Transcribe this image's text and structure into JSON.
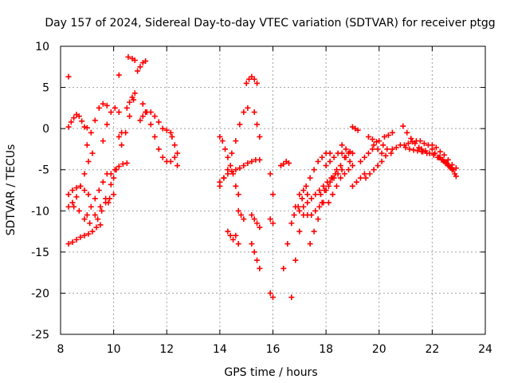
{
  "chart_data": {
    "type": "scatter",
    "title": "Day 157 of 2024, Sidereal Day-to-day VTEC variation (SDTVAR) for receiver ptgg",
    "xlabel": "GPS time / hours",
    "ylabel": "SDTVAR / TECUs",
    "xlim": [
      8,
      24
    ],
    "ylim": [
      -25,
      10
    ],
    "xticks": [
      8,
      10,
      12,
      14,
      16,
      18,
      20,
      22,
      24
    ],
    "yticks": [
      -25,
      -20,
      -15,
      -10,
      -5,
      0,
      5,
      10
    ],
    "grid": true,
    "marker": "+",
    "color": "#ff0000",
    "series": [
      {
        "name": "s1",
        "x": [
          8.3,
          8.4,
          8.5,
          8.6,
          8.7,
          8.8,
          8.9,
          9.0
        ],
        "y": [
          0.2,
          0.8,
          1.3,
          1.7,
          1.5,
          0.9,
          0.2,
          0.1
        ]
      },
      {
        "name": "s2",
        "x": [
          8.3,
          8.45,
          8.6,
          8.75,
          8.9,
          9.05
        ],
        "y": [
          -8.0,
          -7.5,
          -7.2,
          -7.0,
          -7.5,
          -8.0
        ]
      },
      {
        "name": "s3",
        "x": [
          8.3,
          8.45,
          8.6,
          8.75,
          8.9,
          9.05,
          9.2
        ],
        "y": [
          -9.5,
          -9.0,
          -8.3,
          -7.0,
          -5.5,
          -4.0,
          -3.0
        ]
      },
      {
        "name": "s4",
        "x": [
          8.3,
          8.45,
          8.6,
          8.75,
          8.9,
          9.05,
          9.2,
          9.35,
          9.5
        ],
        "y": [
          -14.0,
          -13.8,
          -13.5,
          -13.2,
          -13.0,
          -12.8,
          -12.5,
          -12.0,
          -11.7
        ]
      },
      {
        "name": "s5",
        "x": [
          8.3
        ],
        "y": [
          6.3
        ]
      },
      {
        "name": "s6",
        "x": [
          8.5,
          8.7,
          8.9,
          9.1,
          9.3,
          9.5,
          9.7,
          9.8
        ],
        "y": [
          -9.5,
          -10.0,
          -11.0,
          -11.5,
          -10.5,
          -9.5,
          -8.5,
          -9.0
        ]
      },
      {
        "name": "s7",
        "x": [
          9.0,
          9.15,
          9.3,
          9.45,
          9.6,
          9.75
        ],
        "y": [
          -2.0,
          -0.5,
          1.0,
          2.5,
          3.0,
          2.8
        ]
      },
      {
        "name": "s8",
        "x": [
          9.0,
          9.15,
          9.3,
          9.45,
          9.6,
          9.75
        ],
        "y": [
          -10.5,
          -9.5,
          -8.5,
          -7.5,
          -6.5,
          -5.5
        ]
      },
      {
        "name": "s9",
        "x": [
          9.4,
          9.55,
          9.7,
          9.85,
          10.0
        ],
        "y": [
          -11.0,
          -10.0,
          -9.0,
          -8.5,
          -8.0
        ]
      },
      {
        "name": "s10",
        "x": [
          9.6,
          9.75,
          9.9,
          10.05,
          10.2
        ],
        "y": [
          -1.5,
          0.5,
          2.0,
          2.5,
          2.0
        ]
      },
      {
        "name": "s11",
        "x": [
          9.9,
          10.05,
          10.2,
          10.35,
          10.5
        ],
        "y": [
          -5.5,
          -5.0,
          -4.6,
          -4.3,
          -4.2
        ]
      },
      {
        "name": "s12",
        "x": [
          9.9,
          10.0,
          10.1
        ],
        "y": [
          -6.8,
          -6.0,
          -5.0
        ]
      },
      {
        "name": "s13",
        "x": [
          10.2,
          10.3
        ],
        "y": [
          -1.0,
          -0.5
        ]
      },
      {
        "name": "s14",
        "x": [
          10.2
        ],
        "y": [
          6.5
        ]
      },
      {
        "name": "s15",
        "x": [
          10.3,
          10.45,
          10.6,
          10.75
        ],
        "y": [
          -2.0,
          -0.5,
          1.5,
          3.5
        ]
      },
      {
        "name": "s16",
        "x": [
          10.5,
          10.6,
          10.7,
          10.8
        ],
        "y": [
          2.5,
          3.2,
          3.8,
          4.3
        ]
      },
      {
        "name": "s17",
        "x": [
          10.55,
          10.7,
          10.8
        ],
        "y": [
          8.7,
          8.5,
          8.3
        ]
      },
      {
        "name": "s18",
        "x": [
          10.9,
          11.0,
          11.1,
          11.2
        ],
        "y": [
          7.0,
          7.5,
          8.0,
          8.2
        ]
      },
      {
        "name": "s19",
        "x": [
          11.0,
          11.1,
          11.2
        ],
        "y": [
          1.0,
          1.5,
          2.0
        ]
      },
      {
        "name": "s20",
        "x": [
          11.1,
          11.25,
          11.4,
          11.55,
          11.7,
          11.85,
          12.0,
          12.15,
          12.3,
          12.4
        ],
        "y": [
          3.0,
          2.0,
          0.5,
          -1.0,
          -2.5,
          -3.5,
          -4.0,
          -4.0,
          -3.5,
          -4.5
        ]
      },
      {
        "name": "s21",
        "x": [
          11.4,
          11.55,
          11.7,
          11.85,
          12.0,
          12.15
        ],
        "y": [
          2.0,
          1.5,
          0.8,
          0.0,
          -0.2,
          -0.5
        ]
      },
      {
        "name": "s22",
        "x": [
          12.2,
          12.3,
          12.4
        ],
        "y": [
          -1.0,
          -2.0,
          -3.0
        ]
      },
      {
        "name": "s23",
        "x": [
          14.0,
          14.1,
          14.2,
          14.3,
          14.4,
          14.5,
          14.6,
          14.7
        ],
        "y": [
          -1.0,
          -1.5,
          -2.5,
          -3.5,
          -4.5,
          -5.5,
          -7.0,
          -8.0
        ]
      },
      {
        "name": "s24",
        "x": [
          14.0,
          14.15,
          14.3,
          14.45,
          14.6,
          14.75,
          14.9,
          15.05
        ],
        "y": [
          -7.0,
          -6.0,
          -5.0,
          -3.0,
          -1.5,
          0.5,
          2.0,
          2.5
        ]
      },
      {
        "name": "s25",
        "x": [
          14.0,
          14.15,
          14.3,
          14.45,
          14.6,
          14.75,
          14.9,
          15.05,
          15.2,
          15.35,
          15.5
        ],
        "y": [
          -6.5,
          -6.0,
          -5.5,
          -5.2,
          -5.0,
          -4.8,
          -4.5,
          -4.2,
          -4.0,
          -3.8,
          -3.8
        ]
      },
      {
        "name": "s26",
        "x": [
          14.3,
          14.4,
          14.5,
          14.6,
          14.7
        ],
        "y": [
          -12.5,
          -13.0,
          -13.5,
          -13.0,
          -14.0
        ]
      },
      {
        "name": "s27",
        "x": [
          14.7,
          14.8,
          14.9
        ],
        "y": [
          -10.0,
          -10.5,
          -11.0
        ]
      },
      {
        "name": "s28",
        "x": [
          15.0,
          15.1,
          15.2,
          15.3,
          15.4
        ],
        "y": [
          5.5,
          6.0,
          6.3,
          6.0,
          5.5
        ]
      },
      {
        "name": "s29",
        "x": [
          15.2,
          15.3,
          15.4,
          15.5
        ],
        "y": [
          -10.5,
          -11.0,
          -11.5,
          -12.0
        ]
      },
      {
        "name": "s30",
        "x": [
          15.2,
          15.3,
          15.4,
          15.5
        ],
        "y": [
          -14.0,
          -15.0,
          -16.0,
          -17.0
        ]
      },
      {
        "name": "s31",
        "x": [
          15.3,
          15.4,
          15.5
        ],
        "y": [
          2.0,
          0.5,
          -1.0
        ]
      },
      {
        "name": "s32",
        "x": [
          15.9,
          16.0
        ],
        "y": [
          -20.0,
          -20.5
        ]
      },
      {
        "name": "s33",
        "x": [
          15.9,
          16.0
        ],
        "y": [
          -5.5,
          -8.0
        ]
      },
      {
        "name": "s34",
        "x": [
          15.9,
          16.0
        ],
        "y": [
          -11.0,
          -11.5
        ]
      },
      {
        "name": "s35",
        "x": [
          16.3,
          16.4,
          16.5,
          16.6
        ],
        "y": [
          -4.5,
          -4.3,
          -4.0,
          -4.2
        ]
      },
      {
        "name": "s36",
        "x": [
          16.4,
          16.55,
          16.7,
          16.85,
          17.0,
          17.15,
          17.3
        ],
        "y": [
          -17.0,
          -14.0,
          -11.5,
          -9.5,
          -8.0,
          -7.5,
          -8.0
        ]
      },
      {
        "name": "s37",
        "x": [
          16.7,
          16.85,
          17.0,
          17.15,
          17.3,
          17.45,
          17.6,
          17.75,
          17.9
        ],
        "y": [
          -20.5,
          -16.0,
          -12.5,
          -10.5,
          -10.5,
          -10.5,
          -10.0,
          -9.5,
          -9.0
        ]
      },
      {
        "name": "s38",
        "x": [
          16.8,
          16.95,
          17.1,
          17.25,
          17.4,
          17.55,
          17.7,
          17.85,
          18.0,
          18.15
        ],
        "y": [
          -10.5,
          -9.5,
          -8.5,
          -7.0,
          -6.0,
          -5.0,
          -4.0,
          -3.5,
          -3.0,
          -3.0
        ]
      },
      {
        "name": "s39",
        "x": [
          17.0,
          17.15,
          17.3,
          17.45,
          17.6,
          17.75,
          17.9,
          18.05,
          18.2,
          18.35
        ],
        "y": [
          -10.0,
          -9.5,
          -9.0,
          -8.5,
          -8.0,
          -7.5,
          -7.0,
          -6.5,
          -6.0,
          -5.5
        ]
      },
      {
        "name": "s40",
        "x": [
          17.4,
          17.55,
          17.7,
          17.85,
          18.0,
          18.15,
          18.3,
          18.45,
          18.6
        ],
        "y": [
          -14.0,
          -12.5,
          -11.0,
          -9.0,
          -7.5,
          -6.5,
          -6.0,
          -5.5,
          -5.0
        ]
      },
      {
        "name": "s41",
        "x": [
          17.8,
          17.95,
          18.1,
          18.25,
          18.4,
          18.55,
          18.7,
          18.85,
          19.0
        ],
        "y": [
          -8.0,
          -7.5,
          -7.0,
          -6.0,
          -5.0,
          -4.5,
          -3.5,
          -3.0,
          -3.0
        ]
      },
      {
        "name": "s42",
        "x": [
          18.0,
          18.15,
          18.3,
          18.45,
          18.6,
          18.75,
          18.9
        ],
        "y": [
          -4.5,
          -4.0,
          -3.5,
          -3.0,
          -3.0,
          -3.5,
          -4.0
        ]
      },
      {
        "name": "s43",
        "x": [
          18.1,
          18.25,
          18.4,
          18.55,
          18.7,
          18.85,
          19.0
        ],
        "y": [
          -9.0,
          -8.0,
          -7.0,
          -6.0,
          -5.5,
          -5.0,
          -4.5
        ]
      },
      {
        "name": "s44",
        "x": [
          18.6,
          18.75,
          18.9
        ],
        "y": [
          -2.0,
          -2.5,
          -2.8
        ]
      },
      {
        "name": "s45",
        "x": [
          19.0,
          19.1,
          19.2
        ],
        "y": [
          0.2,
          0.0,
          -0.2
        ]
      },
      {
        "name": "s46",
        "x": [
          19.0,
          19.15,
          19.3,
          19.45
        ],
        "y": [
          -7.0,
          -6.5,
          -6.0,
          -5.5
        ]
      },
      {
        "name": "s47",
        "x": [
          19.3,
          19.45,
          19.6,
          19.75
        ],
        "y": [
          -4.0,
          -3.5,
          -3.0,
          -2.5
        ]
      },
      {
        "name": "s48",
        "x": [
          19.5,
          19.65,
          19.8,
          19.95,
          20.1
        ],
        "y": [
          -6.0,
          -5.5,
          -5.0,
          -4.5,
          -4.0
        ]
      },
      {
        "name": "s49",
        "x": [
          19.6,
          19.75,
          19.9
        ],
        "y": [
          -1.0,
          -1.3,
          -1.6
        ]
      },
      {
        "name": "s50",
        "x": [
          19.8,
          19.95,
          20.1,
          20.25
        ],
        "y": [
          -2.0,
          -2.5,
          -3.0,
          -3.3
        ]
      },
      {
        "name": "s51",
        "x": [
          20.0,
          20.15,
          20.3,
          20.45
        ],
        "y": [
          -1.5,
          -2.0,
          -2.5,
          -3.0
        ]
      },
      {
        "name": "s52",
        "x": [
          20.2,
          20.35,
          20.5
        ],
        "y": [
          -1.0,
          -0.8,
          -0.5
        ]
      },
      {
        "name": "s53",
        "x": [
          20.5,
          20.65,
          20.8,
          20.95,
          21.1,
          21.25,
          21.4,
          21.55,
          21.7,
          21.85,
          22.0
        ],
        "y": [
          -2.5,
          -2.3,
          -2.0,
          -2.0,
          -1.8,
          -1.6,
          -1.5,
          -1.5,
          -1.8,
          -2.0,
          -2.5
        ]
      },
      {
        "name": "s54",
        "x": [
          20.9,
          21.05,
          21.2,
          21.35,
          21.5,
          21.65,
          21.8
        ],
        "y": [
          0.3,
          -0.5,
          -1.2,
          -1.8,
          -2.3,
          -2.8,
          -3.0
        ]
      },
      {
        "name": "s55",
        "x": [
          21.0,
          21.15,
          21.3,
          21.45,
          21.6
        ],
        "y": [
          -2.3,
          -2.5,
          -2.6,
          -2.7,
          -2.8
        ]
      },
      {
        "name": "s56",
        "x": [
          21.6,
          21.75,
          21.9,
          22.05,
          22.2,
          22.35,
          22.5,
          22.65,
          22.8
        ],
        "y": [
          -2.5,
          -2.7,
          -3.0,
          -3.2,
          -3.5,
          -3.8,
          -4.2,
          -4.6,
          -5.0
        ]
      },
      {
        "name": "s57",
        "x": [
          22.0,
          22.15,
          22.3,
          22.45,
          22.6,
          22.75,
          22.9
        ],
        "y": [
          -2.0,
          -2.3,
          -2.8,
          -3.2,
          -3.8,
          -4.4,
          -4.8
        ]
      },
      {
        "name": "s58",
        "x": [
          22.1,
          22.25,
          22.4,
          22.55,
          22.7,
          22.85
        ],
        "y": [
          -3.0,
          -3.5,
          -3.8,
          -4.2,
          -4.8,
          -5.5
        ]
      },
      {
        "name": "s59",
        "x": [
          22.3,
          22.45,
          22.6,
          22.75,
          22.9
        ],
        "y": [
          -3.5,
          -4.0,
          -4.5,
          -5.0,
          -5.8
        ]
      }
    ]
  }
}
